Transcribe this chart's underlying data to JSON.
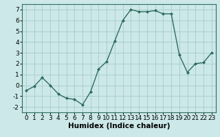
{
  "x": [
    0,
    1,
    2,
    3,
    4,
    5,
    6,
    7,
    8,
    9,
    10,
    11,
    12,
    13,
    14,
    15,
    16,
    17,
    18,
    19,
    20,
    21,
    22,
    23
  ],
  "y": [
    -0.5,
    -0.1,
    0.7,
    0.0,
    -0.8,
    -1.2,
    -1.3,
    -1.8,
    -0.6,
    1.5,
    2.2,
    4.1,
    6.0,
    7.0,
    6.8,
    6.8,
    6.9,
    6.6,
    6.6,
    2.8,
    1.2,
    2.0,
    2.1,
    3.0
  ],
  "line_color": "#2d6b5e",
  "marker": "D",
  "marker_size": 2,
  "bg_color": "#cce8e8",
  "grid_color": "#aacfcf",
  "xlabel": "Humidex (Indice chaleur)",
  "xlim": [
    -0.5,
    23.5
  ],
  "ylim": [
    -2.5,
    7.5
  ],
  "yticks": [
    -2,
    -1,
    0,
    1,
    2,
    3,
    4,
    5,
    6,
    7
  ],
  "xticks": [
    0,
    1,
    2,
    3,
    4,
    5,
    6,
    7,
    8,
    9,
    10,
    11,
    12,
    13,
    14,
    15,
    16,
    17,
    18,
    19,
    20,
    21,
    22,
    23
  ],
  "tick_fontsize": 6.5,
  "label_fontsize": 7.5,
  "linewidth": 1.0
}
